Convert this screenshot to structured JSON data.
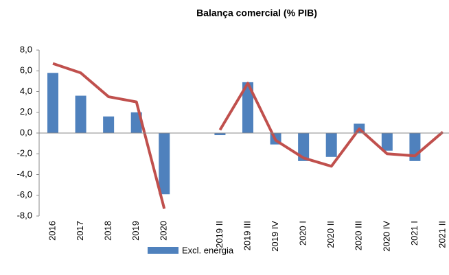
{
  "chart_data": {
    "type": "bar_line",
    "title": "Balança comercial (% PIB)",
    "categories": [
      "2016",
      "2017",
      "2018",
      "2019",
      "2020",
      null,
      "2019 II",
      "2019 III",
      "2019 IV",
      "2020 I",
      "2020 II",
      "2020 III",
      "2020 IV",
      "2021 I",
      "2021 II"
    ],
    "series": [
      {
        "name": "Excl. energia",
        "kind": "bar",
        "color": "#4f81bd",
        "values": [
          5.8,
          3.6,
          1.6,
          2.0,
          -5.9,
          null,
          -0.2,
          4.9,
          -1.1,
          -2.7,
          -2.3,
          0.9,
          -1.7,
          -2.7,
          null
        ]
      },
      {
        "kind": "line",
        "color": "#c0504d",
        "values": [
          6.7,
          5.8,
          3.5,
          3.0,
          -7.3,
          null,
          0.3,
          4.8,
          -0.7,
          -2.4,
          -3.2,
          0.4,
          -2.0,
          -2.2,
          0.1
        ]
      }
    ],
    "ylim": [
      -8,
      8
    ],
    "yticks": [
      {
        "value": -8,
        "label": "-8,0"
      },
      {
        "value": -6,
        "label": "-6,0"
      },
      {
        "value": -4,
        "label": "-4,0"
      },
      {
        "value": -2,
        "label": "-2,0"
      },
      {
        "value": 0,
        "label": "0,0"
      },
      {
        "value": 2,
        "label": "2,0"
      },
      {
        "value": 4,
        "label": "4,0"
      },
      {
        "value": 6,
        "label": "6,0"
      },
      {
        "value": 8,
        "label": "8,0"
      }
    ],
    "grid": false,
    "legend": "bottom"
  }
}
